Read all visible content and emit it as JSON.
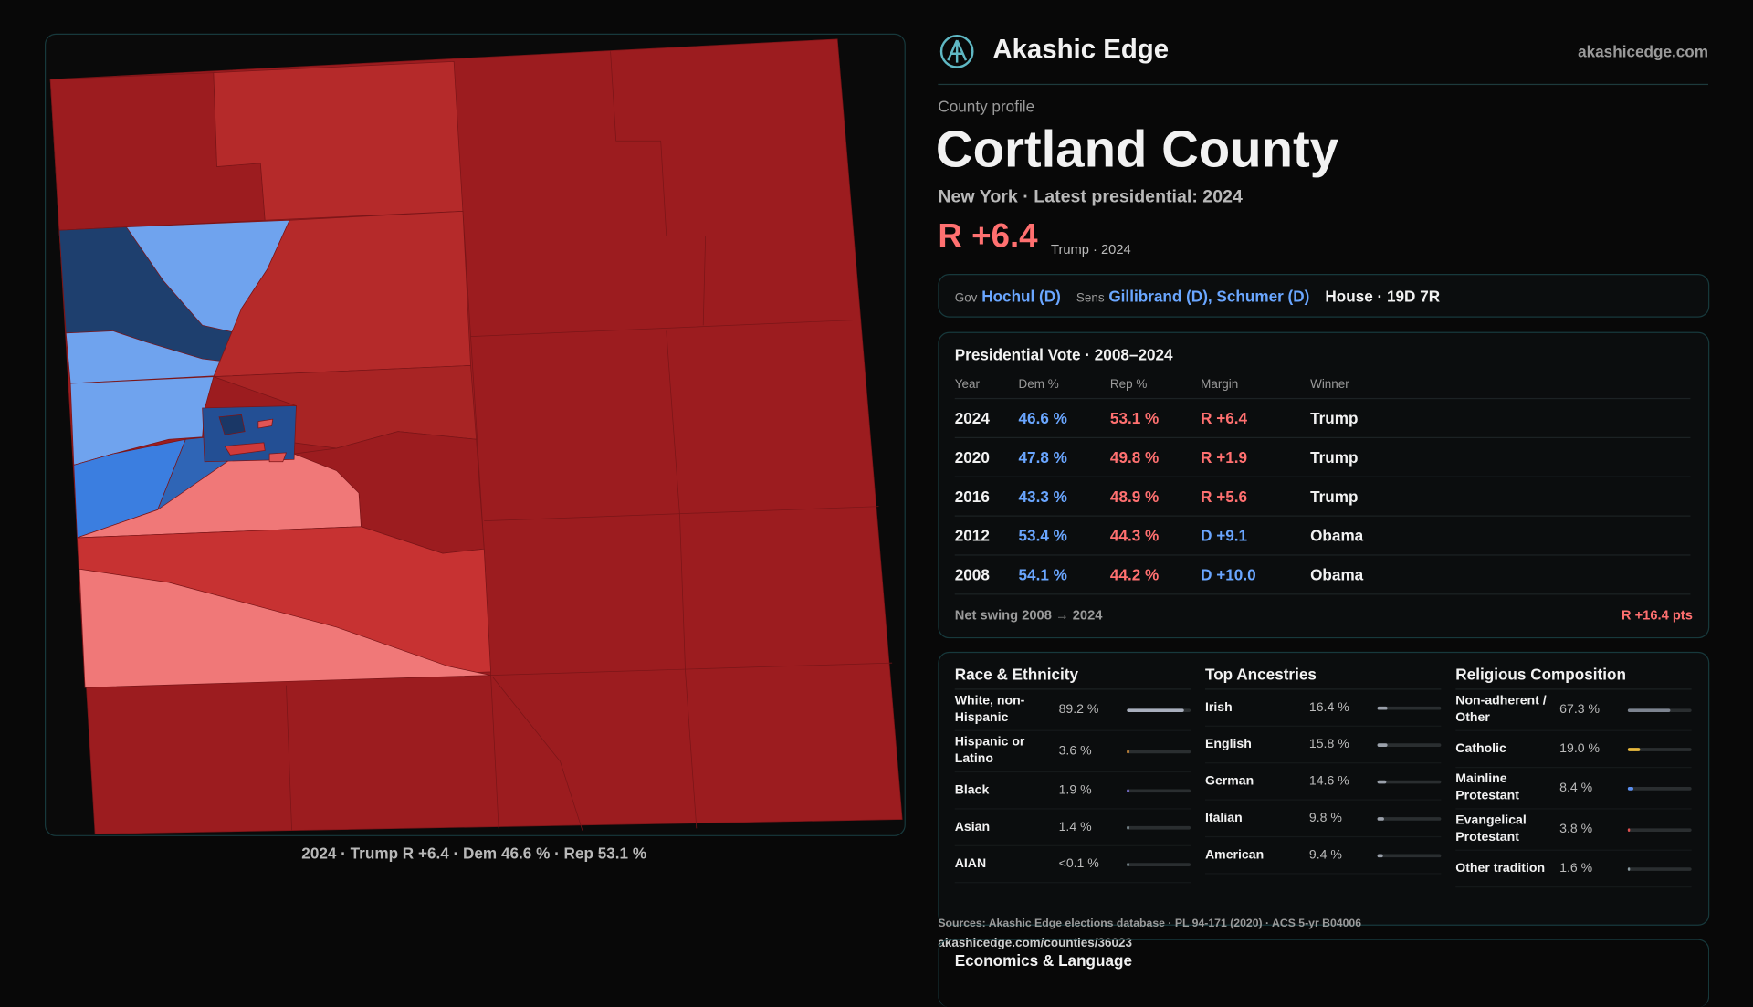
{
  "header": {
    "brand": "Akashic Edge",
    "site": "akashicedge.com"
  },
  "profile": {
    "kicker": "County profile",
    "name": "Cortland County",
    "subtitle": "New York · Latest presidential: 2024",
    "margin": "R +6.4",
    "margin_note": "Trump · 2024"
  },
  "officials": {
    "gov_label": "Gov",
    "gov": "Hochul (D)",
    "sens_label": "Sens",
    "sens": "Gillibrand (D), Schumer (D)",
    "house": "House · 19D 7R"
  },
  "presidential": {
    "title": "Presidential Vote · 2008–2024",
    "columns": [
      "Year",
      "Dem %",
      "Rep %",
      "Margin",
      "Winner"
    ],
    "rows": [
      [
        "2024",
        "46.6 %",
        "53.1 %",
        "R +6.4",
        "Trump"
      ],
      [
        "2020",
        "47.8 %",
        "49.8 %",
        "R +1.9",
        "Trump"
      ],
      [
        "2016",
        "43.3 %",
        "48.9 %",
        "R +5.6",
        "Trump"
      ],
      [
        "2012",
        "53.4 %",
        "44.3 %",
        "D +9.1",
        "Obama"
      ],
      [
        "2008",
        "54.1 %",
        "44.2 %",
        "D +10.0",
        "Obama"
      ]
    ],
    "swing_label": "Net swing 2008 → 2024",
    "swing": "R +16.4 pts"
  },
  "demographics": [
    {
      "title": "Race & Ethnicity",
      "rows": [
        {
          "name": "White, non-Hispanic",
          "label": "89.2 %",
          "value": 89.2,
          "color": "#a9afbd"
        },
        {
          "name": "Hispanic or Latino",
          "label": "3.6 %",
          "value": 3.6,
          "color": "#e89a3c"
        },
        {
          "name": "Black",
          "label": "1.9 %",
          "value": 1.9,
          "color": "#8a7cf0"
        },
        {
          "name": "Asian",
          "label": "1.4 %",
          "value": 1.4,
          "color": "#8a9aa0"
        },
        {
          "name": "AIAN",
          "label": "<0.1 %",
          "value": 0,
          "color": "#8a9aa0"
        }
      ]
    },
    {
      "title": "Top Ancestries",
      "rows": [
        {
          "name": "Irish",
          "label": "16.4 %",
          "value": 16.4,
          "color": "#9aa0aa"
        },
        {
          "name": "English",
          "label": "15.8 %",
          "value": 15.8,
          "color": "#9aa0aa"
        },
        {
          "name": "German",
          "label": "14.6 %",
          "value": 14.6,
          "color": "#9aa0aa"
        },
        {
          "name": "Italian",
          "label": "9.8 %",
          "value": 9.8,
          "color": "#9aa0aa"
        },
        {
          "name": "American",
          "label": "9.4 %",
          "value": 9.4,
          "color": "#9aa0aa"
        }
      ]
    },
    {
      "title": "Religious Composition",
      "rows": [
        {
          "name": "Non-adherent / Other",
          "label": "67.3 %",
          "value": 67.3,
          "color": "#7d8490"
        },
        {
          "name": "Catholic",
          "label": "19.0 %",
          "value": 19.0,
          "color": "#e8b83c"
        },
        {
          "name": "Mainline Protestant",
          "label": "8.4 %",
          "value": 8.4,
          "color": "#5b8ff0"
        },
        {
          "name": "Evangelical Protestant",
          "label": "3.8 %",
          "value": 3.8,
          "color": "#e05050"
        },
        {
          "name": "Other tradition",
          "label": "1.6 %",
          "value": 1.6,
          "color": "#8a9aa0"
        }
      ]
    }
  ],
  "map": {
    "caption": "2024 · Trump R +6.4 · Dem 46.6 % · Rep 53.1 %"
  },
  "footer": {
    "sources": "Sources: Akashic Edge elections database · PL 94-171 (2020) · ACS 5-yr B04006",
    "url": "akashicedge.com/counties/36023",
    "next_section": "Economics & Language"
  }
}
